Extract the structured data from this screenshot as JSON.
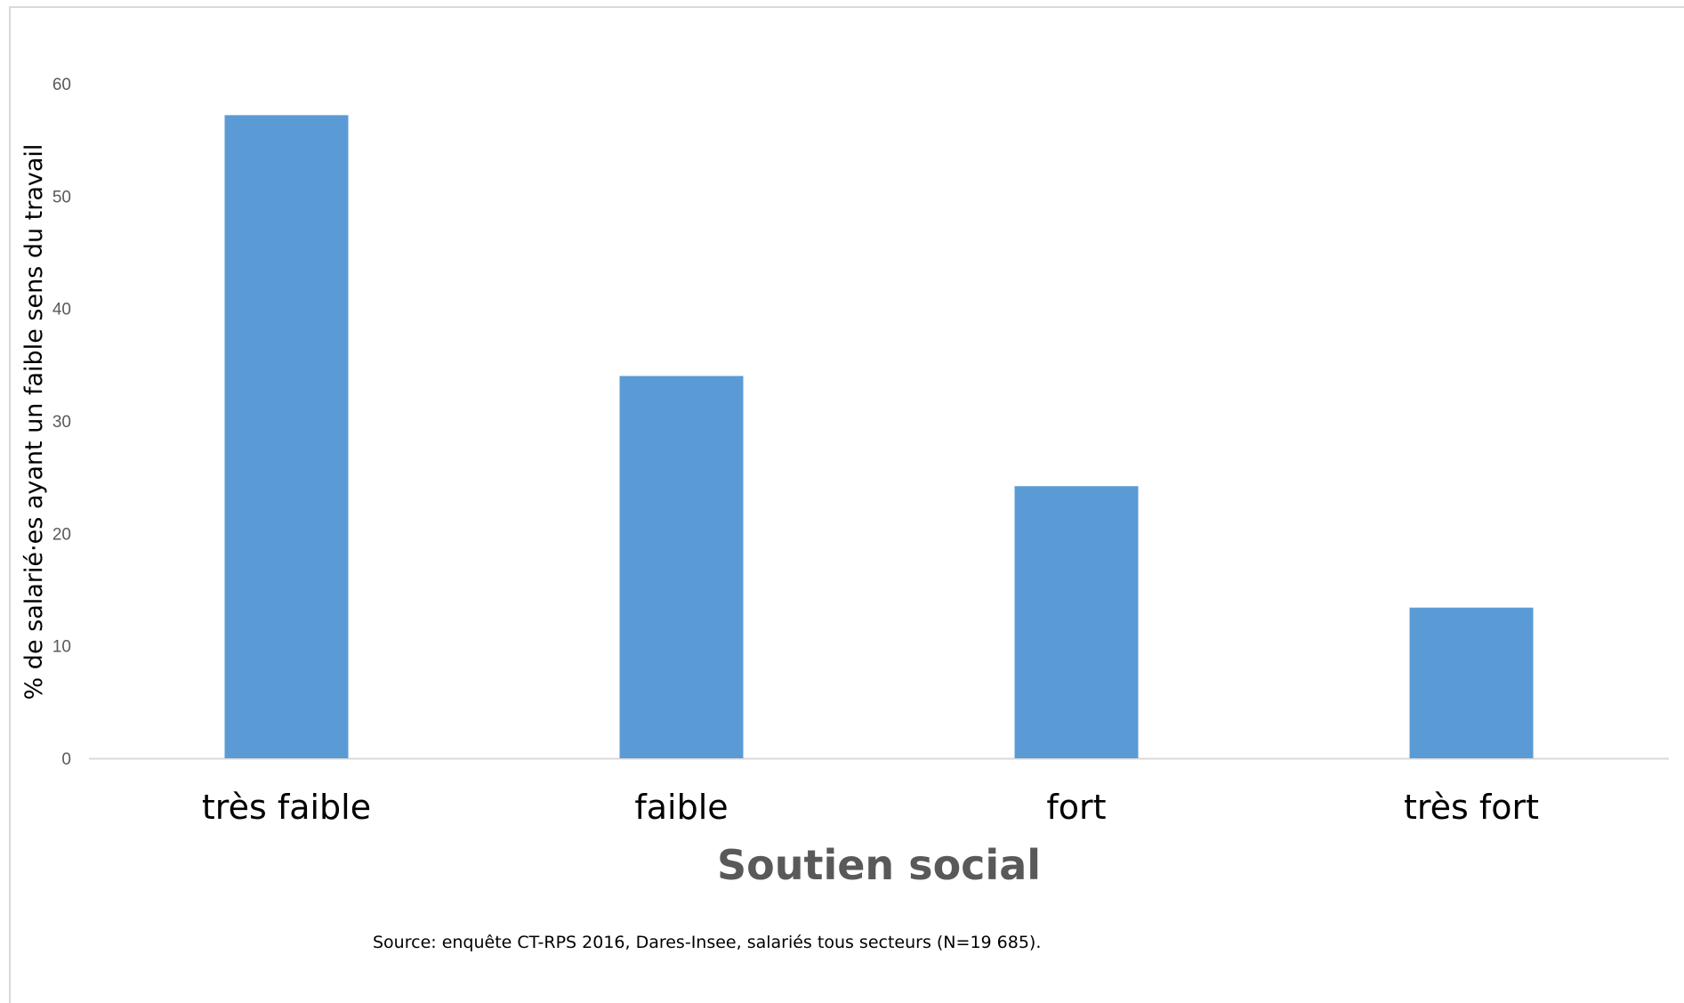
{
  "chart_data": {
    "type": "bar",
    "categories": [
      "très faible",
      "faible",
      "fort",
      "très fort"
    ],
    "values": [
      57.2,
      34.0,
      24.2,
      13.4
    ],
    "ylim": [
      0,
      60
    ],
    "yticks": [
      "0",
      "10",
      "20",
      "30",
      "40",
      "50",
      "60"
    ],
    "ylabel": "% de salarié·es ayant un faible sens du travail",
    "xlabel": "Soutien social",
    "grid": false,
    "legend": "none",
    "bar_color": "#5b9bd5",
    "axis_color": "#d9d9d9"
  },
  "source_note": "Source: enquête CT-RPS 2016, Dares-Insee, salariés tous secteurs (N=19 685)."
}
